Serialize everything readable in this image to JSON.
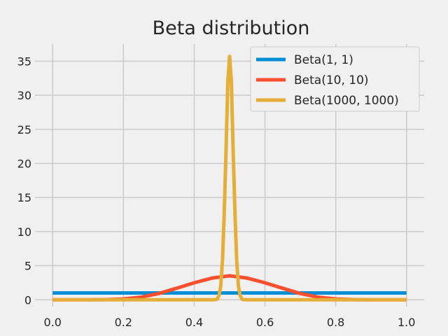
{
  "chart_data": {
    "type": "line",
    "title": "Beta distribution",
    "xlabel": "",
    "ylabel": "",
    "xlim": [
      -0.05,
      1.05
    ],
    "ylim": [
      -1.0,
      37.5
    ],
    "xticks": [
      0.0,
      0.2,
      0.4,
      0.6,
      0.8,
      1.0
    ],
    "xtick_labels": [
      "0.0",
      "0.2",
      "0.4",
      "0.6",
      "0.8",
      "1.0"
    ],
    "yticks": [
      0,
      5,
      10,
      15,
      20,
      25,
      30,
      35
    ],
    "ytick_labels": [
      "0",
      "5",
      "10",
      "15",
      "20",
      "25",
      "30",
      "35"
    ],
    "grid": true,
    "legend_position": "top-right",
    "series": [
      {
        "name": "Beta(1, 1)",
        "color": "#008fd5",
        "x": [
          0.0,
          0.1,
          0.2,
          0.3,
          0.4,
          0.5,
          0.6,
          0.7,
          0.8,
          0.9,
          1.0
        ],
        "y": [
          1,
          1,
          1,
          1,
          1,
          1,
          1,
          1,
          1,
          1,
          1
        ]
      },
      {
        "name": "Beta(10, 10)",
        "color": "#fc4f30",
        "x": [
          0.0,
          0.05,
          0.1,
          0.15,
          0.2,
          0.25,
          0.3,
          0.35,
          0.4,
          0.45,
          0.5,
          0.55,
          0.6,
          0.65,
          0.7,
          0.75,
          0.8,
          0.85,
          0.9,
          0.95,
          1.0
        ],
        "y": [
          0.0,
          0.0,
          0.002,
          0.02,
          0.12,
          0.39,
          0.92,
          1.69,
          2.49,
          3.18,
          3.52,
          3.18,
          2.49,
          1.69,
          0.92,
          0.39,
          0.12,
          0.02,
          0.002,
          0.0,
          0.0
        ]
      },
      {
        "name": "Beta(1000, 1000)",
        "color": "#e5ae38",
        "x": [
          0.0,
          0.44,
          0.45,
          0.46,
          0.465,
          0.47,
          0.475,
          0.48,
          0.485,
          0.49,
          0.495,
          0.5,
          0.505,
          0.51,
          0.515,
          0.52,
          0.525,
          0.53,
          0.535,
          0.54,
          0.55,
          0.56,
          1.0
        ],
        "y": [
          0.0,
          0.0,
          0.0,
          0.02,
          0.1,
          0.6,
          2.0,
          5.8,
          13.0,
          22.0,
          32.0,
          35.7,
          32.0,
          22.0,
          13.0,
          5.8,
          2.0,
          0.6,
          0.1,
          0.02,
          0.0,
          0.0,
          0.0
        ]
      }
    ]
  }
}
